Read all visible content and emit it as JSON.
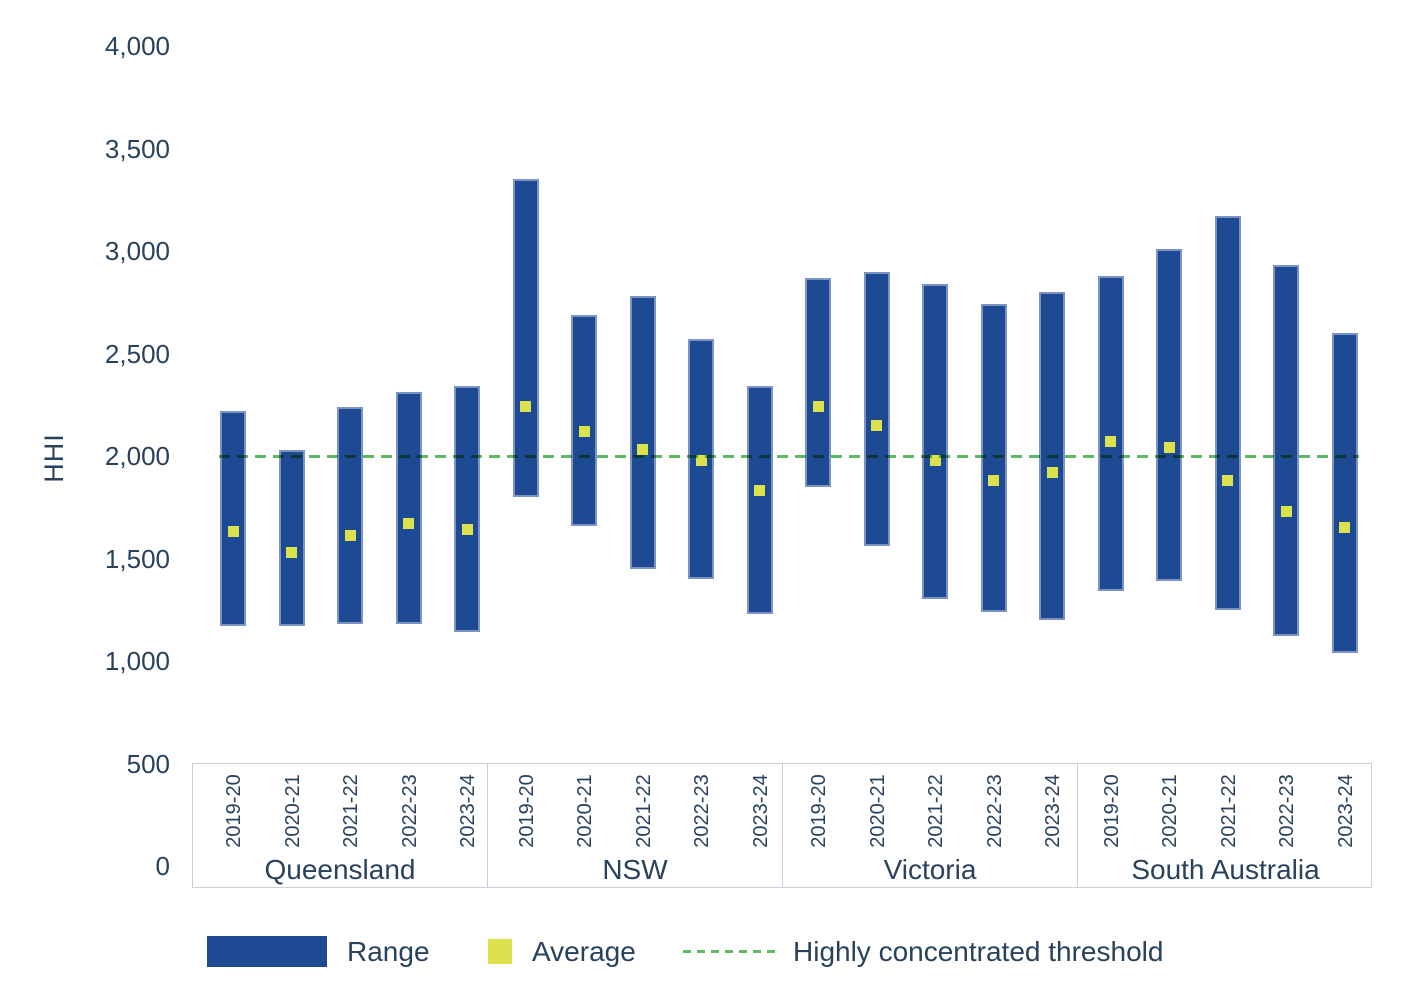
{
  "chart_data": {
    "type": "bar",
    "subtype": "floating-range-with-average-markers",
    "title": "",
    "xlabel": "",
    "ylabel": "HHI",
    "ylim": [
      0,
      4000
    ],
    "y_ticks": [
      0,
      500,
      1000,
      1500,
      2000,
      2500,
      3000,
      3500,
      4000
    ],
    "grid": false,
    "legend_position": "bottom",
    "categories_years": [
      "2019-20",
      "2020-21",
      "2021-22",
      "2022-23",
      "2023-24"
    ],
    "groups": [
      {
        "state": "Queensland",
        "years": [
          "2019-20",
          "2020-21",
          "2021-22",
          "2022-23",
          "2023-24"
        ],
        "ranges": [
          [
            1170,
            2220
          ],
          [
            1170,
            2030
          ],
          [
            1180,
            2240
          ],
          [
            1180,
            2310
          ],
          [
            1140,
            2340
          ]
        ],
        "averages": [
          1630,
          1530,
          1610,
          1670,
          1640
        ]
      },
      {
        "state": "NSW",
        "years": [
          "2019-20",
          "2020-21",
          "2021-22",
          "2022-23",
          "2023-24"
        ],
        "ranges": [
          [
            1800,
            3350
          ],
          [
            1660,
            2690
          ],
          [
            1450,
            2780
          ],
          [
            1400,
            2570
          ],
          [
            1230,
            2340
          ]
        ],
        "averages": [
          2240,
          2120,
          2030,
          1980,
          1830
        ]
      },
      {
        "state": "Victoria",
        "years": [
          "2019-20",
          "2020-21",
          "2021-22",
          "2022-23",
          "2023-24"
        ],
        "ranges": [
          [
            1850,
            2870
          ],
          [
            1560,
            2900
          ],
          [
            1300,
            2840
          ],
          [
            1240,
            2740
          ],
          [
            1200,
            2800
          ]
        ],
        "averages": [
          2240,
          2150,
          1980,
          1880,
          1920
        ]
      },
      {
        "state": "South Australia",
        "years": [
          "2019-20",
          "2020-21",
          "2021-22",
          "2022-23",
          "2023-24"
        ],
        "ranges": [
          [
            1340,
            2880
          ],
          [
            1390,
            3010
          ],
          [
            1250,
            3170
          ],
          [
            1120,
            2930
          ],
          [
            1040,
            2600
          ]
        ],
        "averages": [
          2070,
          2040,
          1880,
          1730,
          1650
        ]
      }
    ],
    "threshold": {
      "value": 2000,
      "label": "Highly concentrated threshold"
    },
    "legend": {
      "range": "Range",
      "average": "Average",
      "threshold": "Highly concentrated threshold"
    },
    "colors": {
      "bar_fill": "#1e4a94",
      "bar_edge": "#7b94c4",
      "average_marker": "#dce14e",
      "threshold_line": "#5cbb60",
      "text": "#28425e",
      "band_border": "#c8cfda"
    }
  }
}
